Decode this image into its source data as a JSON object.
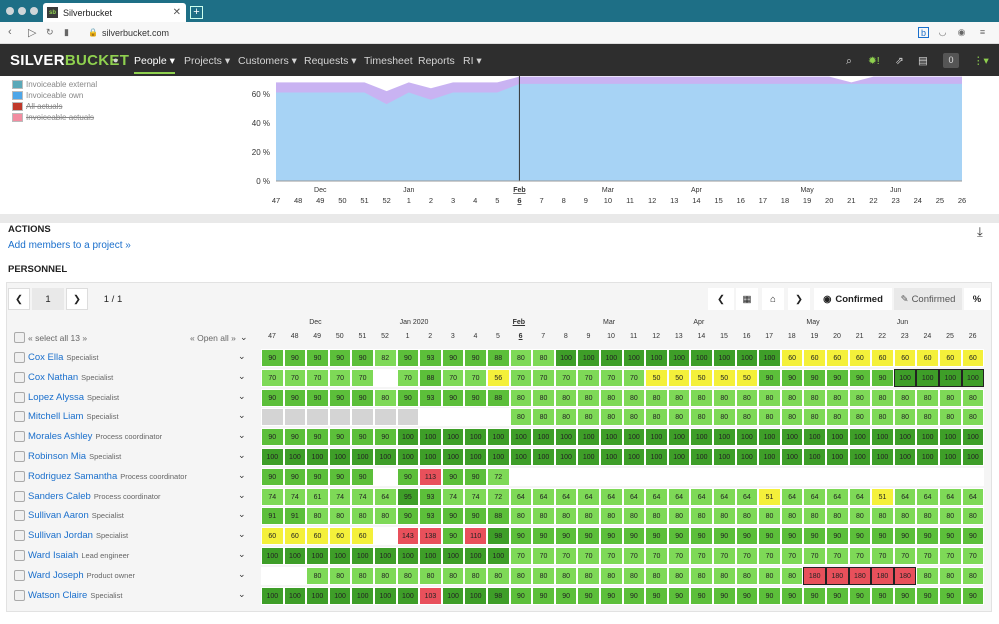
{
  "browser": {
    "tab_title": "Silverbucket",
    "tab_close": "✕",
    "new_tab": "+",
    "url": "silverbucket.com"
  },
  "app": {
    "logo_a": "SILVER",
    "logo_b": "BUCKET",
    "nav": [
      {
        "label": "People ▾"
      },
      {
        "label": "Projects ▾"
      },
      {
        "label": "Customers ▾"
      },
      {
        "label": "Requests ▾"
      },
      {
        "label": "Timesheet"
      },
      {
        "label": "Reports"
      },
      {
        "label": "RI ▾"
      }
    ],
    "badge": "0"
  },
  "chart_top": {
    "legend": [
      {
        "label": "Invoiceable external",
        "color": "#5aa8b8",
        "strike": false
      },
      {
        "label": "Invoiceable own",
        "color": "#4da6e8",
        "strike": false
      },
      {
        "label": "All actuals",
        "color": "#c0392b",
        "strike": true
      },
      {
        "label": "Invoiceable actuals",
        "color": "#f28ca0",
        "strike": true
      }
    ],
    "yticks": [
      "60 %",
      "40 %",
      "20 %",
      "0 %"
    ],
    "months": [
      {
        "label": "Dec",
        "wi": 2
      },
      {
        "label": "Jan",
        "wi": 6
      },
      {
        "label": "Feb",
        "wi": 11
      },
      {
        "label": "Mar",
        "wi": 15
      },
      {
        "label": "Apr",
        "wi": 19
      },
      {
        "label": "May",
        "wi": 24
      },
      {
        "label": "Jun",
        "wi": 28
      }
    ],
    "weeks": [
      "47",
      "48",
      "49",
      "50",
      "51",
      "52",
      "1",
      "2",
      "3",
      "4",
      "5",
      "6",
      "7",
      "8",
      "9",
      "10",
      "11",
      "12",
      "13",
      "14",
      "15",
      "16",
      "17",
      "18",
      "19",
      "20",
      "21",
      "22",
      "23",
      "24",
      "25",
      "26"
    ],
    "current_week_index": 11
  },
  "actions": {
    "heading": "ACTIONS",
    "add_link": "Add members to a project »"
  },
  "personnel": {
    "heading": "PERSONNEL",
    "page": "1",
    "pages": "1 / 1",
    "confirmed_toggle": "Confirmed",
    "confirmed_alt": "Confirmed",
    "percent": "%",
    "select_all": "« select all 13 »",
    "open_all": "« Open all »",
    "month_label_jan": "Jan 2020",
    "months": [
      {
        "label": "Dec",
        "wi": 2
      },
      {
        "label": "Jan 2020",
        "wi": 6
      },
      {
        "label": "Feb",
        "wi": 11
      },
      {
        "label": "Mar",
        "wi": 15
      },
      {
        "label": "Apr",
        "wi": 19
      },
      {
        "label": "May",
        "wi": 24
      },
      {
        "label": "Jun",
        "wi": 28
      }
    ],
    "weeks": [
      "47",
      "48",
      "49",
      "50",
      "51",
      "52",
      "1",
      "2",
      "3",
      "4",
      "5",
      "6",
      "7",
      "8",
      "9",
      "10",
      "11",
      "12",
      "13",
      "14",
      "15",
      "16",
      "17",
      "18",
      "19",
      "20",
      "21",
      "22",
      "23",
      "24",
      "25",
      "26"
    ],
    "people": [
      {
        "name": "Cox Ella",
        "role": "Specialist",
        "values": [
          "90",
          "90",
          "90",
          "90",
          "90",
          "82",
          "90",
          "93",
          "90",
          "90",
          "88",
          "80",
          "80",
          "100",
          "100",
          "100",
          "100",
          "100",
          "100",
          "100",
          "100",
          "100",
          "100",
          "60",
          "60",
          "60",
          "60",
          "60",
          "60",
          "60",
          "60",
          "60"
        ]
      },
      {
        "name": "Cox Nathan",
        "role": "Specialist",
        "values": [
          "70",
          "70",
          "70",
          "70",
          "70",
          "",
          "70",
          "88",
          "70",
          "70",
          "56",
          "70",
          "70",
          "70",
          "70",
          "70",
          "70",
          "50",
          "50",
          "50",
          "50",
          "50",
          "90",
          "90",
          "90",
          "90",
          "90",
          "90",
          "100",
          "100",
          "100",
          "100"
        ]
      },
      {
        "name": "Lopez Alyssa",
        "role": "Specialist",
        "values": [
          "90",
          "90",
          "90",
          "90",
          "90",
          "80",
          "90",
          "93",
          "90",
          "90",
          "88",
          "80",
          "80",
          "80",
          "80",
          "80",
          "80",
          "80",
          "80",
          "80",
          "80",
          "80",
          "80",
          "80",
          "80",
          "80",
          "80",
          "80",
          "80",
          "80",
          "80",
          "80"
        ]
      },
      {
        "name": "Mitchell Liam",
        "role": "Specialist",
        "values": [
          "-",
          "-",
          "-",
          "-",
          "-",
          "-",
          "-",
          "",
          "",
          "",
          "",
          "80",
          "80",
          "80",
          "80",
          "80",
          "80",
          "80",
          "80",
          "80",
          "80",
          "80",
          "80",
          "80",
          "80",
          "80",
          "80",
          "80",
          "80",
          "80",
          "80",
          "80"
        ]
      },
      {
        "name": "Morales Ashley",
        "role": "Process coordinator",
        "values": [
          "90",
          "90",
          "90",
          "90",
          "90",
          "90",
          "100",
          "100",
          "100",
          "100",
          "100",
          "100",
          "100",
          "100",
          "100",
          "100",
          "100",
          "100",
          "100",
          "100",
          "100",
          "100",
          "100",
          "100",
          "100",
          "100",
          "100",
          "100",
          "100",
          "100",
          "100",
          "100"
        ]
      },
      {
        "name": "Robinson Mia",
        "role": "Specialist",
        "values": [
          "100",
          "100",
          "100",
          "100",
          "100",
          "100",
          "100",
          "100",
          "100",
          "100",
          "100",
          "100",
          "100",
          "100",
          "100",
          "100",
          "100",
          "100",
          "100",
          "100",
          "100",
          "100",
          "100",
          "100",
          "100",
          "100",
          "100",
          "100",
          "100",
          "100",
          "100",
          "100"
        ]
      },
      {
        "name": "Rodriguez Samantha",
        "role": "Process coordinator",
        "values": [
          "90",
          "90",
          "90",
          "90",
          "90",
          "",
          "90",
          "113",
          "90",
          "90",
          "72",
          "",
          "",
          "",
          "",
          "",
          "",
          "",
          "",
          "",
          "",
          "",
          "",
          "",
          "",
          "",
          "",
          "",
          "",
          "",
          "",
          ""
        ]
      },
      {
        "name": "Sanders Caleb",
        "role": "Process coordinator",
        "values": [
          "74",
          "74",
          "61",
          "74",
          "74",
          "64",
          "95",
          "93",
          "74",
          "74",
          "72",
          "64",
          "64",
          "64",
          "64",
          "64",
          "64",
          "64",
          "64",
          "64",
          "64",
          "64",
          "51",
          "64",
          "64",
          "64",
          "64",
          "51",
          "64",
          "64",
          "64",
          "64"
        ]
      },
      {
        "name": "Sullivan Aaron",
        "role": "Specialist",
        "values": [
          "91",
          "91",
          "80",
          "80",
          "80",
          "80",
          "90",
          "93",
          "90",
          "90",
          "88",
          "80",
          "80",
          "80",
          "80",
          "80",
          "80",
          "80",
          "80",
          "80",
          "80",
          "80",
          "80",
          "80",
          "80",
          "80",
          "80",
          "80",
          "80",
          "80",
          "80",
          "80"
        ]
      },
      {
        "name": "Sullivan Jordan",
        "role": "Specialist",
        "values": [
          "60",
          "60",
          "60",
          "60",
          "60",
          "",
          "143",
          "138",
          "90",
          "110",
          "98",
          "90",
          "90",
          "90",
          "90",
          "90",
          "90",
          "90",
          "90",
          "90",
          "90",
          "90",
          "90",
          "90",
          "90",
          "90",
          "90",
          "90",
          "90",
          "90",
          "90",
          "90"
        ]
      },
      {
        "name": "Ward Isaiah",
        "role": "Lead engineer",
        "values": [
          "100",
          "100",
          "100",
          "100",
          "100",
          "100",
          "100",
          "100",
          "100",
          "100",
          "100",
          "70",
          "70",
          "70",
          "70",
          "70",
          "70",
          "70",
          "70",
          "70",
          "70",
          "70",
          "70",
          "70",
          "70",
          "70",
          "70",
          "70",
          "70",
          "70",
          "70",
          "70"
        ]
      },
      {
        "name": "Ward Joseph",
        "role": "Product owner",
        "values": [
          "",
          "",
          "80",
          "80",
          "80",
          "80",
          "80",
          "80",
          "80",
          "80",
          "80",
          "80",
          "80",
          "80",
          "80",
          "80",
          "80",
          "80",
          "80",
          "80",
          "80",
          "80",
          "80",
          "80",
          "180",
          "180",
          "180",
          "180",
          "180",
          "80",
          "80",
          "80"
        ]
      },
      {
        "name": "Watson Claire",
        "role": "Specialist",
        "values": [
          "100",
          "100",
          "100",
          "100",
          "100",
          "100",
          "100",
          "103",
          "100",
          "100",
          "98",
          "90",
          "90",
          "90",
          "90",
          "90",
          "90",
          "90",
          "90",
          "90",
          "90",
          "90",
          "90",
          "90",
          "90",
          "90",
          "90",
          "90",
          "90",
          "90",
          "90",
          "90"
        ]
      }
    ]
  },
  "colors": {
    "g1": "#7ed957",
    "g2": "#5cbf3a",
    "g3": "#3e9e28",
    "yellow": "#f4f03a",
    "red": "#e8505b",
    "grey": "#d4d4d4",
    "blue": "#1a6fcc"
  }
}
